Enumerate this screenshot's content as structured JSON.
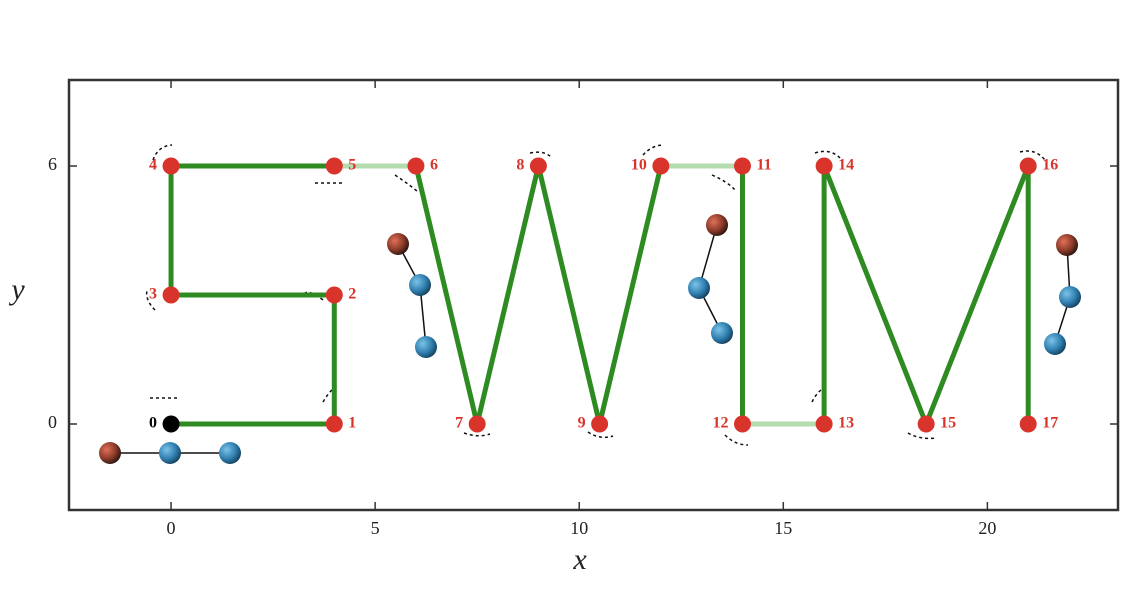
{
  "chart_data": {
    "type": "line",
    "x_label": "x",
    "y_label": "y",
    "x": [
      0,
      4,
      4,
      0,
      0,
      4,
      6,
      7.5,
      9,
      10.5,
      12,
      14,
      14,
      16,
      16,
      18.5,
      21,
      21
    ],
    "y": [
      0,
      0,
      3,
      3,
      6,
      6,
      6,
      0,
      6,
      0,
      6,
      6,
      0,
      0,
      6,
      0,
      6,
      0
    ],
    "labels": [
      "0",
      "1",
      "2",
      "3",
      "4",
      "5",
      "6",
      "7",
      "8",
      "9",
      "10",
      "11",
      "12",
      "13",
      "14",
      "15",
      "16",
      "17"
    ],
    "color": "#2e8b22",
    "faded_color": "#b5dcae",
    "faded_segments": [
      5,
      10,
      12
    ],
    "marker_color": "#d9342b",
    "start_color": "#000000",
    "xlim": [
      -2.5,
      23.2
    ],
    "ylim": [
      -2,
      8
    ],
    "xticks": [
      0,
      5,
      10,
      15,
      20
    ],
    "yticks": [
      0,
      6
    ]
  }
}
